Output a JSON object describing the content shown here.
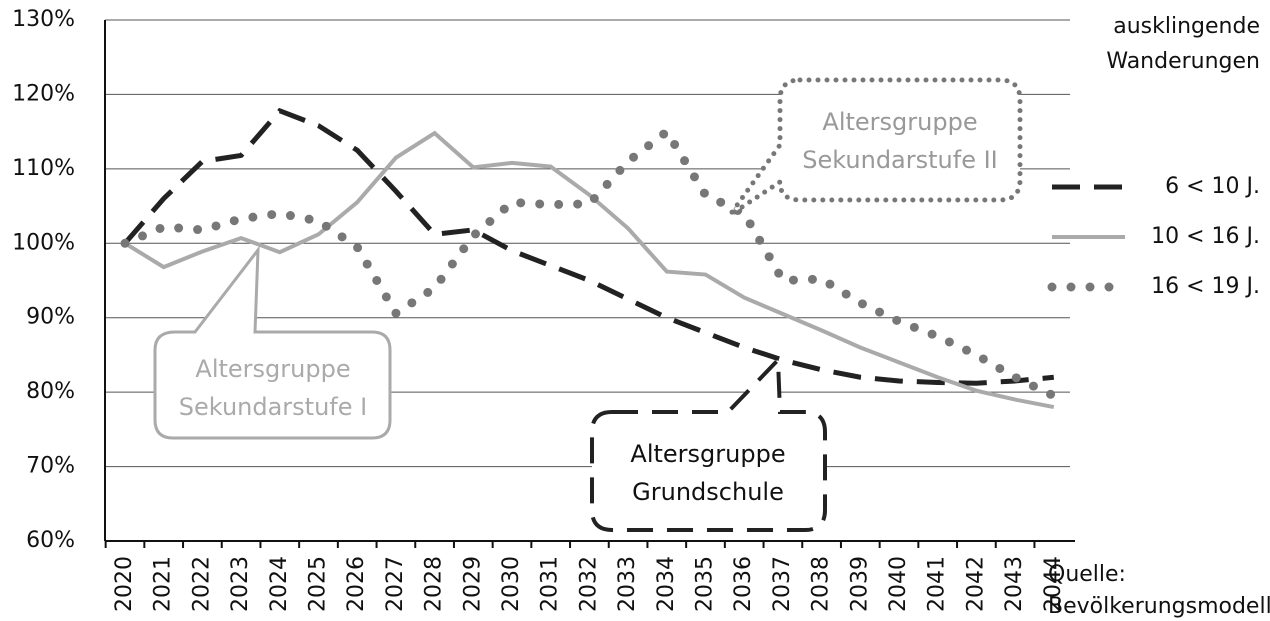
{
  "chart_data": {
    "type": "line",
    "categories": [
      "2020",
      "2021",
      "2022",
      "2023",
      "2024",
      "2025",
      "2026",
      "2027",
      "2028",
      "2029",
      "2030",
      "2031",
      "2032",
      "2033",
      "2034",
      "2035",
      "2036",
      "2037",
      "2038",
      "2039",
      "2040",
      "2041",
      "2042",
      "2043",
      "2044"
    ],
    "series": [
      {
        "name": "6 < 10 J.",
        "color": "#222222",
        "line_style": "dashed",
        "values": [
          100,
          106,
          111,
          111.8,
          117.8,
          115.8,
          112.5,
          107,
          101.2,
          101.8,
          99,
          97,
          95,
          92.5,
          90,
          88,
          86,
          84.3,
          83,
          82,
          81.5,
          81.3,
          81.2,
          81.5,
          82
        ]
      },
      {
        "name": "10 < 16 J.",
        "color": "#aaaaaa",
        "line_style": "solid",
        "values": [
          100,
          96.8,
          98.9,
          100.7,
          98.8,
          101.2,
          105.5,
          111.5,
          114.8,
          110.2,
          110.8,
          110.3,
          106.5,
          102,
          96.2,
          95.8,
          92.7,
          90.5,
          88.3,
          86,
          84,
          82,
          80.2,
          79,
          78
        ]
      },
      {
        "name": "16 < 19 J.",
        "color": "#777777",
        "line_style": "dotted",
        "values": [
          100,
          102.2,
          101.8,
          103.3,
          104,
          103,
          99.5,
          90.6,
          94,
          101,
          105.5,
          105.2,
          105.3,
          111,
          115,
          106.5,
          104,
          95,
          95.2,
          92,
          89.5,
          87.5,
          85,
          82,
          79.5
        ]
      }
    ],
    "ylim": [
      60,
      130
    ],
    "yticks": [
      {
        "value": 60,
        "label": "60%"
      },
      {
        "value": 70,
        "label": "70%"
      },
      {
        "value": 80,
        "label": "80%"
      },
      {
        "value": 90,
        "label": "90%"
      },
      {
        "value": 100,
        "label": "100%"
      },
      {
        "value": 110,
        "label": "110%"
      },
      {
        "value": 120,
        "label": "120%"
      },
      {
        "value": 130,
        "label": "130%"
      }
    ],
    "grid": true,
    "legend_title": [
      "ausklingende",
      "Wanderungen"
    ],
    "source": [
      "Quelle:",
      "Bevölkerungsmodell"
    ],
    "annotations": [
      {
        "lines": [
          "Altersgruppe",
          "Sekundarstufe I"
        ]
      },
      {
        "lines": [
          "Altersgruppe",
          "Grundschule"
        ]
      },
      {
        "lines": [
          "Altersgruppe",
          "Sekundarstufe II"
        ]
      }
    ]
  }
}
